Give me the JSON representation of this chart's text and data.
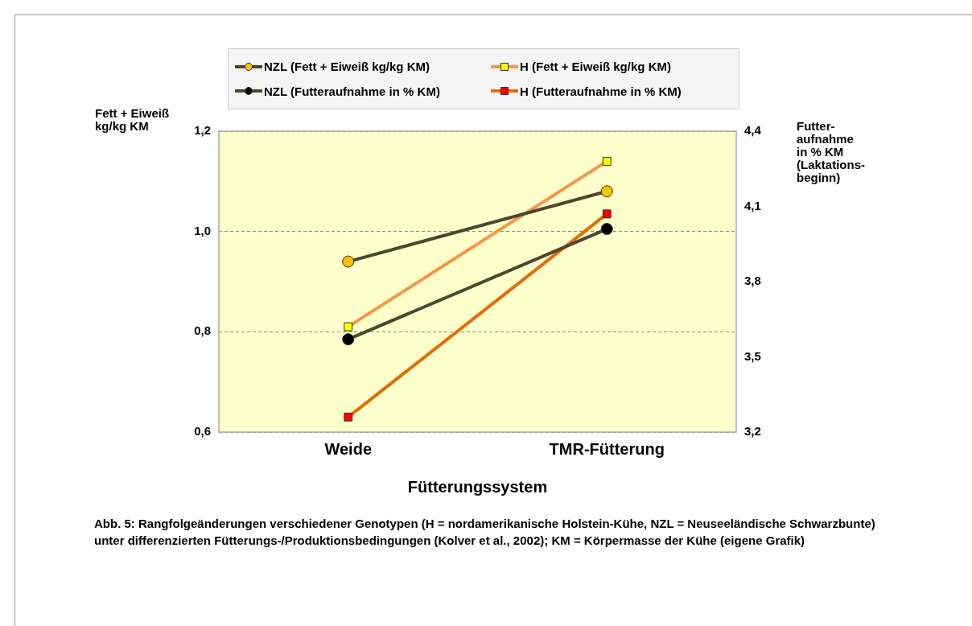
{
  "chart_data": {
    "type": "line",
    "categories": [
      "Weide",
      "TMR-Fütterung"
    ],
    "xlabel": "Fütterungssystem",
    "ylabel": "Fett + Eiweiß\nkg/kg KM",
    "y2label": "Futter-\naufnahme\nin % KM\n(Laktations-\nbeginn)",
    "series": [
      {
        "name": "NZL (Fett + Eiweiß kg/kg KM)",
        "color": "#4d4630",
        "colors": [
          "#ffc000",
          "#ffc000"
        ],
        "marker": "circle",
        "values": [
          0.94,
          1.08
        ]
      },
      {
        "name": "H (Fett + Eiweiß kg/kg KM)",
        "color": "#f79646",
        "colors": [
          "#ffff00",
          "#ffff00"
        ],
        "marker": "square",
        "values": [
          0.81,
          1.14
        ]
      },
      {
        "name": "NZL (Futteraufnahme in % KM)",
        "color": "#4d4630",
        "colors": [
          "#000000",
          "#000000"
        ],
        "marker": "circle",
        "axis": "y2",
        "values": [
          3.57,
          4.01
        ]
      },
      {
        "name": "H (Futteraufnahme in % KM)",
        "color": "#e36c0a",
        "colors": [
          "#ff0000",
          "#ff0000"
        ],
        "marker": "square",
        "axis": "y2",
        "values": [
          3.26,
          4.07
        ]
      }
    ],
    "ylim": [
      0.6,
      1.2
    ],
    "yticks": [
      {
        "value": 0.6,
        "label": "0,6"
      },
      {
        "value": 0.8,
        "label": "0,8"
      },
      {
        "value": 1.0,
        "label": "1,0"
      },
      {
        "value": 1.2,
        "label": "1,2"
      }
    ],
    "y2lim": [
      3.2,
      4.4
    ],
    "y2ticks": [
      {
        "value": 3.2,
        "label": "3,2"
      },
      {
        "value": 3.5,
        "label": "3,5"
      },
      {
        "value": 3.8,
        "label": "3,8"
      },
      {
        "value": 4.1,
        "label": "4,1"
      },
      {
        "value": 4.4,
        "label": "4,4"
      }
    ],
    "grid": "y",
    "line_style": "solid",
    "legend": "top",
    "annotations": [
      "Abb. 5: Rangfolgeänderungen verschiedener Genotypen (H = nordamerikanische Holstein-Kühe, NZL = Neuseeländische Schwarzbunte) unter differenzierten Fütterungs-/Produktionsbedingungen (Kolver et al., 2002); KM = Körpermasse der Kühe (eigene Grafik)"
    ]
  }
}
